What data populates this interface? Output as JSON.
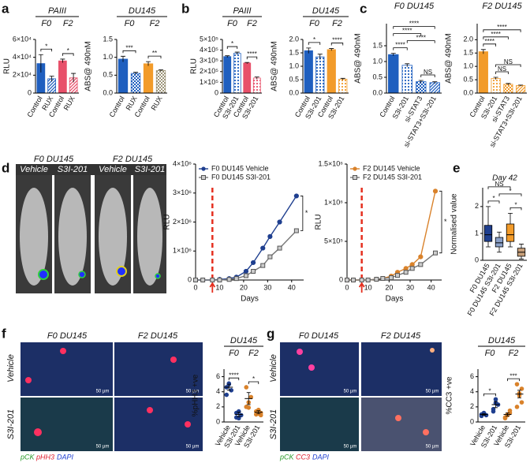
{
  "panel_labels": [
    "a",
    "b",
    "c",
    "d",
    "e",
    "f",
    "g"
  ],
  "photos": {
    "d": {
      "groups": [
        "F0 DU145",
        "F2 DU145"
      ],
      "conditions": [
        "Vehicle",
        "S3I-201",
        "Vehicle",
        "S3I-201"
      ]
    },
    "f": {
      "columns": [
        "F0 DU145",
        "F2 DU145"
      ],
      "rows": [
        "Vehicle",
        "S3I-201"
      ],
      "scale_bars": [
        "50 µm",
        "50 µm",
        "50 µm",
        "50 µm"
      ],
      "stains": [
        "pCK",
        "pHH3",
        "DAPI"
      ]
    },
    "g": {
      "columns": [
        "F0 DU145",
        "F2 DU145"
      ],
      "rows": [
        "Vehicle",
        "S3I-201"
      ],
      "scale_bars": [
        "50 µm",
        "50 µm",
        "50 µm",
        "50 µm"
      ],
      "stains": [
        "pCK",
        "CC3",
        "DAPI"
      ]
    }
  },
  "chart_data": [
    {
      "type": "bar",
      "title": "PAIII",
      "ylabel": "RLU",
      "groups": [
        "F0",
        "F2"
      ],
      "categories": [
        "Control",
        "RUX",
        "Control",
        "RUX"
      ],
      "values": [
        33000,
        16000,
        36000,
        17000
      ],
      "errors": [
        10000,
        3000,
        2000,
        5000
      ],
      "colors": [
        "#1f5fbf",
        "#1f5fbf",
        "#e8506a",
        "#e8506a"
      ],
      "patterns": [
        "solid",
        "hatch",
        "solid",
        "hatch"
      ],
      "ylim": [
        0,
        60000
      ],
      "yticks": [
        0,
        {
          "value": 20000,
          "label": "2×10⁴"
        },
        {
          "value": 40000,
          "label": "4×10⁴"
        },
        {
          "value": 60000,
          "label": "6×10⁴"
        }
      ],
      "significance": [
        {
          "between": [
            0,
            1
          ],
          "label": "*"
        },
        {
          "between": [
            2,
            3
          ],
          "label": "*"
        }
      ]
    },
    {
      "type": "bar",
      "title": "DU145",
      "ylabel": "ABS@ 490nM",
      "groups": [
        "F0",
        "F2"
      ],
      "categories": [
        "Control",
        "RUX",
        "Control",
        "RUX"
      ],
      "values": [
        0.95,
        0.55,
        0.82,
        0.63
      ],
      "errors": [
        0.08,
        0.03,
        0.06,
        0.02
      ],
      "colors": [
        "#1f5fbf",
        "#1f5fbf",
        "#f29b2a",
        "#9c9478"
      ],
      "patterns": [
        "solid",
        "check",
        "solid",
        "check"
      ],
      "ylim": [
        0,
        1.5
      ],
      "yticks": [
        {
          "value": 0,
          "label": "0.0"
        },
        0.5,
        {
          "value": 1,
          "label": "1.0"
        },
        1.5
      ],
      "significance": [
        {
          "between": [
            0,
            1
          ],
          "label": "***"
        },
        {
          "between": [
            2,
            3
          ],
          "label": "**"
        }
      ]
    },
    {
      "type": "bar",
      "title": "PAIII",
      "ylabel": "RLU",
      "groups": [
        "F0",
        "F2"
      ],
      "categories": [
        "Control",
        "S3I-201",
        "Control",
        "S3I-201"
      ],
      "values": [
        340000,
        370000,
        280000,
        140000
      ],
      "errors": [
        8000,
        12000,
        6000,
        10000
      ],
      "colors": [
        "#1f5fbf",
        "#1f5fbf",
        "#e8506a",
        "#e8506a"
      ],
      "patterns": [
        "solid",
        "dots",
        "solid",
        "dots"
      ],
      "ylim": [
        0,
        500000
      ],
      "yticks": [
        0,
        {
          "value": 100000,
          "label": "1×10⁵"
        },
        {
          "value": 200000,
          "label": "2×10⁵"
        },
        {
          "value": 300000,
          "label": "3×10⁵"
        },
        {
          "value": 400000,
          "label": "4×10⁵"
        },
        {
          "value": 500000,
          "label": "5×10⁵"
        }
      ],
      "significance": [
        {
          "between": [
            0,
            1
          ],
          "label": "*"
        },
        {
          "between": [
            2,
            3
          ],
          "label": "****"
        }
      ]
    },
    {
      "type": "bar",
      "title": "DU145",
      "ylabel": "ABS@ 490nM",
      "groups": [
        "F0",
        "F2"
      ],
      "categories": [
        "Control",
        "S3I-201",
        "Control",
        "S3I-201"
      ],
      "values": [
        1.58,
        1.35,
        1.62,
        0.52
      ],
      "errors": [
        0.1,
        0.1,
        0.04,
        0.03
      ],
      "colors": [
        "#1f5fbf",
        "#1f5fbf",
        "#f29b2a",
        "#f29b2a"
      ],
      "patterns": [
        "solid",
        "dots",
        "solid",
        "dots"
      ],
      "ylim": [
        0,
        2
      ],
      "yticks": [
        {
          "value": 0,
          "label": "0.0"
        },
        0.5,
        {
          "value": 1,
          "label": "1.0"
        },
        1.5,
        {
          "value": 2,
          "label": "2.0"
        }
      ],
      "significance": [
        {
          "between": [
            0,
            1
          ],
          "label": "*"
        },
        {
          "between": [
            2,
            3
          ],
          "label": "****"
        }
      ]
    },
    {
      "type": "bar",
      "title": "F0 DU145",
      "ylabel": "ABS@ 490nM",
      "categories": [
        "Control",
        "S3I-201",
        "si-STAT3",
        "si-STAT3+S3I-201"
      ],
      "values": [
        1.22,
        0.88,
        0.36,
        0.33
      ],
      "errors": [
        0.04,
        0.05,
        0.04,
        0.03
      ],
      "colors": [
        "#1f5fbf",
        "#1f5fbf",
        "#1f5fbf",
        "#1f5fbf"
      ],
      "patterns": [
        "solid",
        "dots",
        "check",
        "hatch"
      ],
      "ylim": [
        0,
        2.2
      ],
      "yticks": [
        {
          "value": 0,
          "label": "0.0"
        },
        0.5,
        {
          "value": 1,
          "label": "1.0"
        },
        1.5
      ],
      "significance": [
        {
          "between": [
            2,
            3
          ],
          "label": "NS"
        },
        {
          "between": [
            0,
            1
          ],
          "label": "****"
        },
        {
          "between": [
            1,
            3
          ],
          "label": "****"
        },
        {
          "between": [
            0,
            2
          ],
          "label": "****"
        },
        {
          "between": [
            0,
            3
          ],
          "label": "****"
        }
      ]
    },
    {
      "type": "bar",
      "title": "F2 DU145",
      "ylabel": "ABS@ 490nM",
      "categories": [
        "Control",
        "S3I-201",
        "si-STAT3",
        "si-STAT3+S3I-201"
      ],
      "values": [
        1.55,
        0.55,
        0.33,
        0.28
      ],
      "errors": [
        0.08,
        0.04,
        0.03,
        0.02
      ],
      "colors": [
        "#f29b2a",
        "#f29b2a",
        "#f29b2a",
        "#f29b2a"
      ],
      "patterns": [
        "solid",
        "dots",
        "check",
        "hatch"
      ],
      "ylim": [
        0,
        2.6
      ],
      "yticks": [
        {
          "value": 0,
          "label": "0.0"
        },
        0.5,
        {
          "value": 1,
          "label": "1.0"
        },
        1.5,
        {
          "value": 2,
          "label": "2.0"
        }
      ],
      "significance": [
        {
          "between": [
            1,
            2
          ],
          "label": "NS"
        },
        {
          "between": [
            1,
            3
          ],
          "label": "NS"
        },
        {
          "between": [
            0,
            1
          ],
          "label": "****"
        },
        {
          "between": [
            0,
            2
          ],
          "label": "****"
        },
        {
          "between": [
            0,
            3
          ],
          "label": "****"
        }
      ]
    },
    {
      "type": "line",
      "xlabel": "Days",
      "ylabel": "RLU",
      "x": [
        0,
        3,
        7,
        10,
        14,
        17,
        21,
        24,
        28,
        31,
        35,
        42
      ],
      "series": [
        {
          "name": "F0 DU145 Vehicle",
          "color": "#1f3f8f",
          "marker": "circle",
          "values": [
            0,
            0,
            0,
            20000,
            50000,
            100000,
            300000,
            600000,
            1100000,
            1500000,
            2000000,
            2900000
          ]
        },
        {
          "name": "F0 DU145 S3I-201",
          "color": "#777777",
          "marker": "square",
          "values": [
            0,
            0,
            0,
            0,
            20000,
            50000,
            150000,
            300000,
            500000,
            800000,
            1100000,
            1700000
          ]
        }
      ],
      "treatment_day": 7,
      "annotation": "*",
      "xlim": [
        0,
        45
      ],
      "xticks": [
        0,
        10,
        20,
        30,
        40
      ],
      "ylim": [
        0,
        4000000
      ],
      "yticks": [
        0,
        {
          "value": 1000000,
          "label": "1×10⁶"
        },
        {
          "value": 2000000,
          "label": "2×10⁶"
        },
        {
          "value": 3000000,
          "label": "3×10⁶"
        },
        {
          "value": 4000000,
          "label": "4×10⁶"
        }
      ]
    },
    {
      "type": "line",
      "xlabel": "Days",
      "ylabel": "RLU",
      "x": [
        0,
        3,
        7,
        10,
        14,
        17,
        21,
        24,
        28,
        31,
        35,
        42
      ],
      "series": [
        {
          "name": "F2 DU145 Vehicle",
          "color": "#d9822b",
          "marker": "circle",
          "values": [
            0,
            0,
            0,
            0,
            10000,
            20000,
            50000,
            100000,
            150000,
            200000,
            300000,
            1150000
          ]
        },
        {
          "name": "F2 DU145 S3I-201",
          "color": "#777777",
          "marker": "square",
          "values": [
            0,
            0,
            0,
            0,
            10000,
            20000,
            30000,
            60000,
            100000,
            150000,
            200000,
            350000
          ]
        }
      ],
      "treatment_day": 7,
      "annotation": "*",
      "xlim": [
        0,
        45
      ],
      "xticks": [
        0,
        10,
        20,
        30,
        40
      ],
      "ylim": [
        0,
        1500000
      ],
      "yticks": [
        0,
        {
          "value": 500000,
          "label": "5×10⁵"
        },
        {
          "value": 1000000,
          "label": "1×10⁶"
        },
        {
          "value": 1500000,
          "label": "1.5×10⁶"
        }
      ]
    },
    {
      "type": "box",
      "title": "Day 42",
      "ylabel": "Normalised value",
      "categories": [
        "F0 DU145",
        "F0 DU145 S3I-201",
        "F2 DU145",
        "F2 DU145 S3I-201"
      ],
      "boxes": [
        [
          0.5,
          0.7,
          0.95,
          1.3,
          2.0
        ],
        [
          0.3,
          0.5,
          0.65,
          0.85,
          1.05
        ],
        [
          0.5,
          0.7,
          0.95,
          1.35,
          1.75
        ],
        [
          0.05,
          0.15,
          0.3,
          0.45,
          0.6
        ]
      ],
      "colors": [
        "#1f3f8f",
        "#8aa0c8",
        "#f29b2a",
        "#c8a07a"
      ],
      "ylim": [
        0,
        2.7
      ],
      "yticks": [
        0,
        1,
        2
      ],
      "significance": [
        {
          "between": [
            0,
            1
          ],
          "label": "*"
        },
        {
          "between": [
            2,
            3
          ],
          "label": "*"
        },
        {
          "between": [
            1,
            3
          ],
          "label": "*"
        },
        {
          "between": [
            0,
            2
          ],
          "label": "NS"
        }
      ]
    },
    {
      "type": "dot",
      "title": "DU145",
      "ylabel": "%pHH3 +ve",
      "groups": [
        "F0",
        "F2"
      ],
      "categories": [
        "Vehicle",
        "S3I-201",
        "Vehicle",
        "S3I-201"
      ],
      "values": [
        4.6,
        1.0,
        3.1,
        1.3
      ],
      "errors": [
        0.4,
        0.3,
        0.8,
        0.2
      ],
      "points": [
        [
          4.6,
          5.0,
          4.2,
          3.6,
          5.1
        ],
        [
          0.6,
          1.4,
          0.9,
          1.2,
          0.5
        ],
        [
          2.0,
          2.6,
          3.3,
          4.6,
          1.9
        ],
        [
          1.0,
          1.6,
          1.2,
          1.4,
          1.1,
          0.9
        ]
      ],
      "colors": [
        "#1f3f8f",
        "#1f3f8f",
        "#d9822b",
        "#d9822b"
      ],
      "ylim": [
        0,
        7
      ],
      "yticks": [
        0,
        2,
        4,
        6
      ],
      "significance": [
        {
          "between": [
            0,
            1
          ],
          "label": "****"
        },
        {
          "between": [
            2,
            3
          ],
          "label": "*"
        }
      ]
    },
    {
      "type": "dot",
      "title": "DU145",
      "ylabel": "%CC3 +ve",
      "groups": [
        "F0",
        "F2"
      ],
      "categories": [
        "Vehicle",
        "S3I-201",
        "Vehicle",
        "S3I-201"
      ],
      "values": [
        1.0,
        2.3,
        1.0,
        3.7
      ],
      "errors": [
        0.1,
        0.4,
        0.2,
        0.5
      ],
      "points": [
        [
          1.0,
          1.2,
          0.9,
          0.8,
          1.1
        ],
        [
          1.4,
          2.5,
          2.3,
          1.7,
          3.0
        ],
        [
          0.6,
          1.0,
          1.2,
          0.5,
          0.9,
          1.5
        ],
        [
          2.0,
          3.5,
          4.4,
          5.0,
          3.8,
          2.6
        ]
      ],
      "colors": [
        "#1f3f8f",
        "#1f3f8f",
        "#d9822b",
        "#d9822b"
      ],
      "ylim": [
        0,
        7
      ],
      "yticks": [
        0,
        2,
        4,
        6
      ],
      "significance": [
        {
          "between": [
            0,
            1
          ],
          "label": "*"
        },
        {
          "between": [
            2,
            3
          ],
          "label": "***"
        }
      ]
    }
  ]
}
